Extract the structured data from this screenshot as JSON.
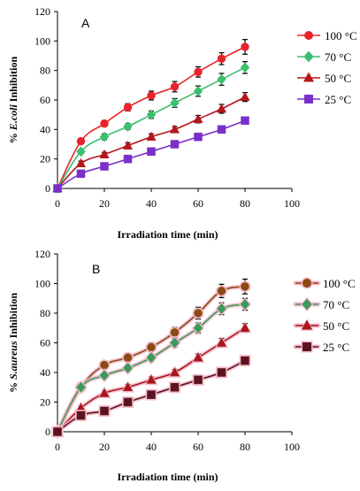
{
  "chart_data": [
    {
      "type": "line",
      "panel_label": "A",
      "xlabel": "Irradiation time (min)",
      "ylabel_prefix": "% ",
      "ylabel_species": "E.coli",
      "ylabel_suffix": "  Inhibition",
      "xlim": [
        0,
        100
      ],
      "ylim": [
        0,
        120
      ],
      "x_ticks": [
        "0",
        "20",
        "40",
        "60",
        "80",
        "100"
      ],
      "y_ticks": [
        "0",
        "20",
        "40",
        "60",
        "80",
        "100",
        "120"
      ],
      "x": [
        0,
        10,
        20,
        30,
        40,
        50,
        60,
        70,
        80
      ],
      "legend_position": "right",
      "series": [
        {
          "name": "100 °C",
          "color": "#e8242a",
          "marker": "circle",
          "values": [
            0,
            32,
            44,
            55,
            63,
            69,
            79,
            88,
            96
          ],
          "errors": [
            0,
            1.5,
            2,
            2.5,
            3,
            3.5,
            3.5,
            4,
            5
          ]
        },
        {
          "name": "70 °C",
          "color": "#3cbf6e",
          "marker": "diamond",
          "values": [
            0,
            25,
            35,
            42,
            50,
            58,
            66,
            74,
            82
          ],
          "errors": [
            0,
            1.5,
            2,
            2,
            2.5,
            3,
            3.5,
            4,
            4
          ]
        },
        {
          "name": "50 °C",
          "color": "#b5161c",
          "marker": "triangle",
          "values": [
            0,
            17,
            23,
            29,
            35,
            40,
            47,
            54,
            62
          ],
          "errors": [
            0,
            1.5,
            1.5,
            2,
            2,
            2,
            2.5,
            3,
            3
          ]
        },
        {
          "name": "25 °C",
          "color": "#7b2fc9",
          "marker": "square",
          "values": [
            0,
            10,
            15,
            20,
            25,
            30,
            35,
            40,
            46
          ],
          "errors": [
            0,
            1,
            1,
            1,
            1.5,
            1.5,
            1.5,
            1.5,
            2
          ]
        }
      ]
    },
    {
      "type": "line",
      "panel_label": "B",
      "xlabel": "Irradiation time (min)",
      "ylabel_prefix": "% ",
      "ylabel_species": "S.aureus",
      "ylabel_suffix": " Inhibition",
      "xlim": [
        0,
        100
      ],
      "ylim": [
        0,
        120
      ],
      "x_ticks": [
        "0",
        "20",
        "40",
        "60",
        "80",
        "100"
      ],
      "y_ticks": [
        "0",
        "20",
        "40",
        "60",
        "80",
        "100",
        "120"
      ],
      "x": [
        0,
        10,
        20,
        30,
        40,
        50,
        60,
        70,
        80
      ],
      "legend_position": "right",
      "series": [
        {
          "name": "100 °C",
          "color": "#8b4a12",
          "halo": "#f4b8c8",
          "marker": "circle",
          "values": [
            0,
            30,
            45,
            50,
            57,
            67,
            80,
            95,
            98
          ],
          "errors": [
            0,
            1.5,
            2,
            2.5,
            3,
            3.5,
            4,
            4.5,
            5
          ]
        },
        {
          "name": "70 °C",
          "color": "#3a9a5c",
          "halo": "#f4b8c8",
          "marker": "diamond",
          "values": [
            0,
            30,
            38,
            43,
            50,
            60,
            70,
            83,
            86
          ],
          "errors": [
            0,
            1.5,
            2,
            2,
            2.5,
            3,
            3.5,
            4,
            4
          ]
        },
        {
          "name": "50 °C",
          "color": "#a8161c",
          "halo": "#f4b8c8",
          "marker": "triangle",
          "values": [
            0,
            16,
            26,
            30,
            35,
            40,
            50,
            60,
            70
          ],
          "errors": [
            0,
            1.5,
            1.5,
            2,
            2,
            2,
            2.5,
            3,
            3
          ]
        },
        {
          "name": "25 °C",
          "color": "#5a1420",
          "halo": "#f4b8c8",
          "marker": "square",
          "values": [
            0,
            11,
            14,
            20,
            25,
            30,
            35,
            40,
            48
          ],
          "errors": [
            0,
            1,
            1,
            1,
            1.5,
            1.5,
            1.5,
            1.5,
            2
          ]
        }
      ]
    }
  ]
}
